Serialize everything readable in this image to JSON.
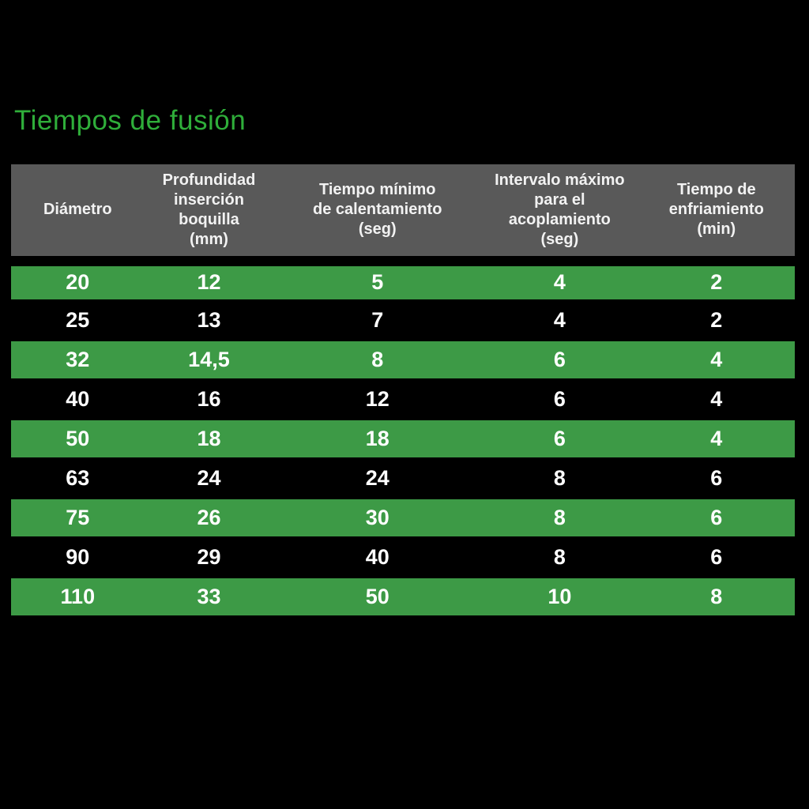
{
  "page": {
    "background_color": "#000000"
  },
  "title": {
    "text": "Tiempos de fusión",
    "color": "#2fae3a"
  },
  "table": {
    "colors": {
      "header_bg": "#595959",
      "header_text": "#f2f2f2",
      "row_highlight_bg": "#3d9a46",
      "row_plain_bg": "#000000",
      "row_text": "#ffffff"
    },
    "columns": [
      {
        "label": "Diámetro"
      },
      {
        "label": "Profundidad\ninserción boquilla\n(mm)"
      },
      {
        "label": "Tiempo mínimo\nde calentamiento\n(seg)"
      },
      {
        "label": "Intervalo máximo\npara el acoplamiento\n(seg)"
      },
      {
        "label": "Tiempo de\nenfriamiento\n(min)"
      }
    ],
    "rows": [
      {
        "highlight": true,
        "values": [
          "20",
          "12",
          "5",
          "4",
          "2"
        ]
      },
      {
        "highlight": false,
        "values": [
          "25",
          "13",
          "7",
          "4",
          "2"
        ]
      },
      {
        "highlight": true,
        "values": [
          "32",
          "14,5",
          "8",
          "6",
          "4"
        ]
      },
      {
        "highlight": false,
        "values": [
          "40",
          "16",
          "12",
          "6",
          "4"
        ]
      },
      {
        "highlight": true,
        "values": [
          "50",
          "18",
          "18",
          "6",
          "4"
        ]
      },
      {
        "highlight": false,
        "values": [
          "63",
          "24",
          "24",
          "8",
          "6"
        ]
      },
      {
        "highlight": true,
        "values": [
          "75",
          "26",
          "30",
          "8",
          "6"
        ]
      },
      {
        "highlight": false,
        "values": [
          "90",
          "29",
          "40",
          "8",
          "6"
        ]
      },
      {
        "highlight": true,
        "values": [
          "110",
          "33",
          "50",
          "10",
          "8"
        ]
      }
    ]
  },
  "chart_data": {
    "type": "table",
    "title": "Tiempos de fusión",
    "columns": [
      "Diámetro",
      "Profundidad inserción boquilla (mm)",
      "Tiempo mínimo de calentamiento (seg)",
      "Intervalo máximo para el acoplamiento (seg)",
      "Tiempo de enfriamiento (min)"
    ],
    "rows": [
      [
        20,
        12,
        5,
        4,
        2
      ],
      [
        25,
        13,
        7,
        4,
        2
      ],
      [
        32,
        14.5,
        8,
        6,
        4
      ],
      [
        40,
        16,
        12,
        6,
        4
      ],
      [
        50,
        18,
        18,
        6,
        4
      ],
      [
        63,
        24,
        24,
        8,
        6
      ],
      [
        75,
        26,
        30,
        8,
        6
      ],
      [
        90,
        29,
        40,
        8,
        6
      ],
      [
        110,
        33,
        50,
        10,
        8
      ]
    ]
  }
}
